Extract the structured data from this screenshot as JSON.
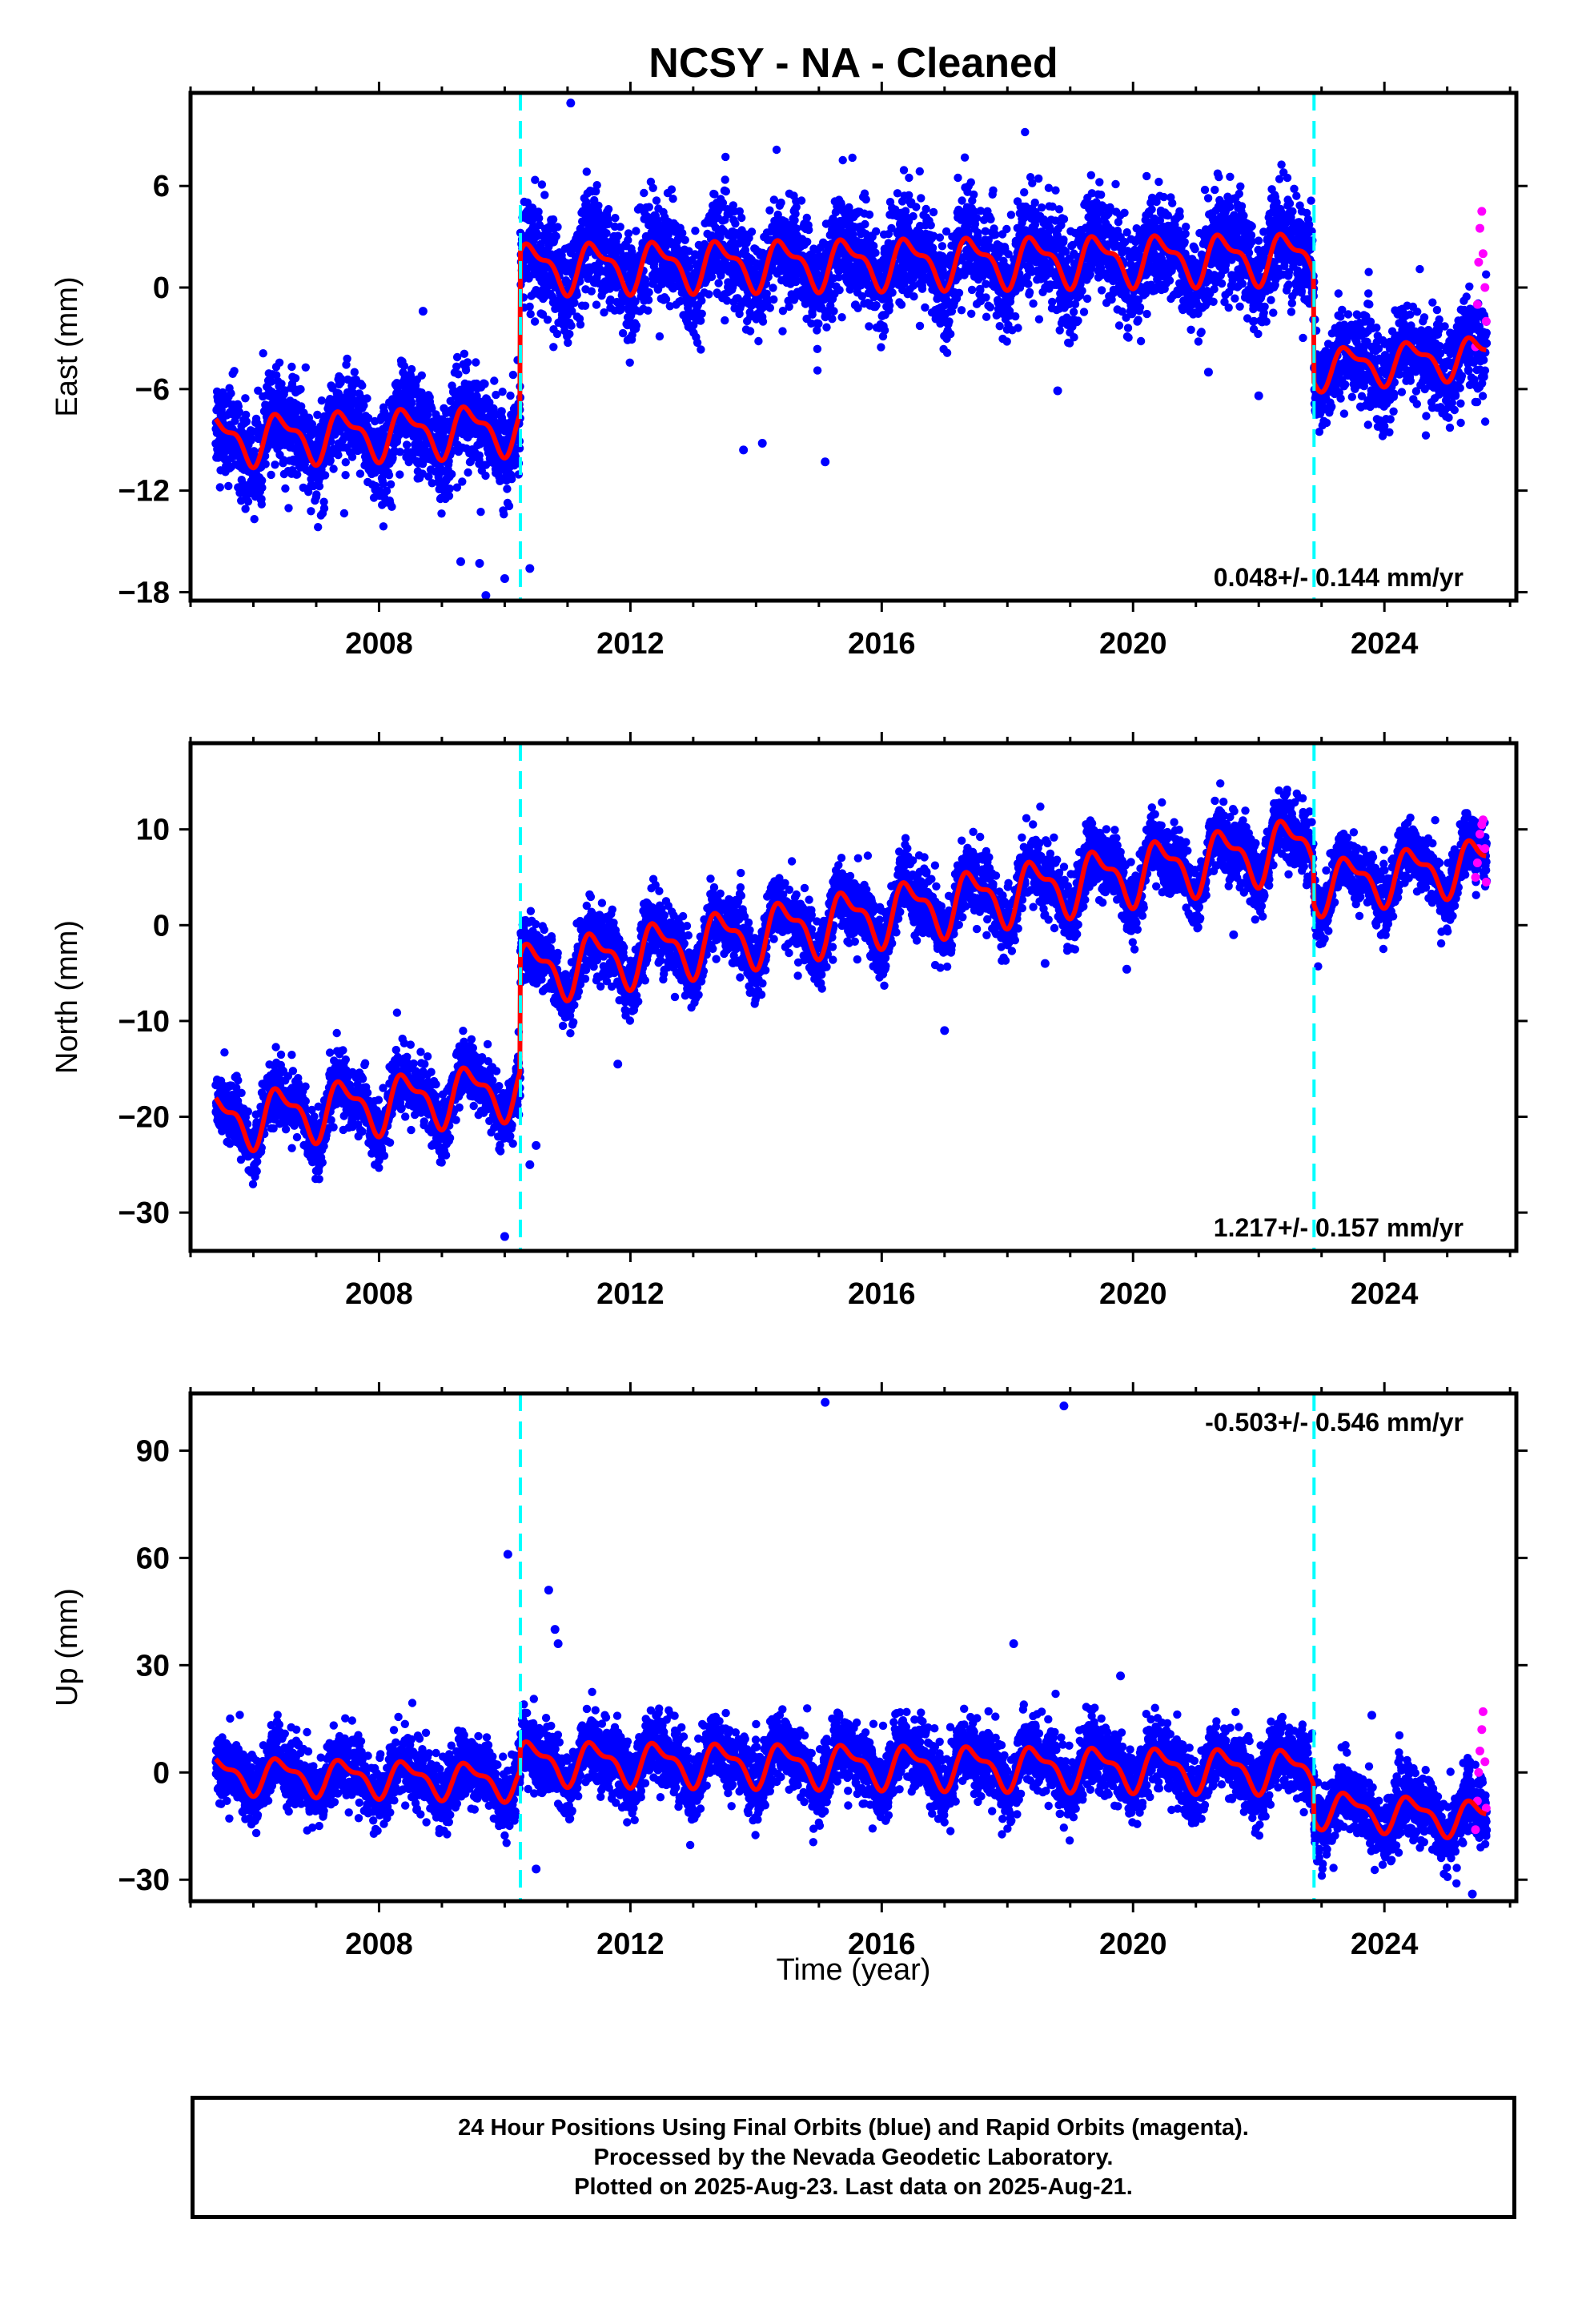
{
  "title": "NCSY  - NA - Cleaned",
  "xlabel": "Time (year)",
  "footer": {
    "line1": "24 Hour Positions Using Final Orbits (blue) and Rapid Orbits (magenta).",
    "line2": "Processed by the Nevada Geodetic Laboratory.",
    "line3": "Plotted on 2025-Aug-23. Last data on 2025-Aug-21."
  },
  "colors": {
    "final_orbits": "#0000ff",
    "rapid_orbits": "#ff00ff",
    "model": "#ff0000",
    "offsets": "#00ffff"
  },
  "chart_data": [
    {
      "type": "scatter",
      "ylabel": "East (mm)",
      "rate_text": "0.048+/- 0.144 mm/yr",
      "rate_position": "bottom-right",
      "xlim": [
        2005.0,
        2026.1
      ],
      "ylim": [
        -18.5,
        11.5
      ],
      "x_ticks": [
        2008,
        2012,
        2016,
        2020,
        2024
      ],
      "y_ticks": [
        6,
        0,
        -6,
        -12,
        -18
      ],
      "offsets": [
        2010.25,
        2022.88
      ],
      "segments": [
        {
          "x_start": 2005.4,
          "x_end": 2010.25,
          "level_start": -9.0,
          "level_end": -8.3,
          "amplitude": 1.6,
          "scatter": 1.4
        },
        {
          "x_start": 2010.25,
          "x_end": 2022.88,
          "level_start": 1.2,
          "level_end": 1.8,
          "amplitude": 1.6,
          "scatter": 1.5
        },
        {
          "x_start": 2022.88,
          "x_end": 2025.63,
          "level_start": -4.8,
          "level_end": -4.0,
          "amplitude": 1.3,
          "scatter": 1.4
        }
      ],
      "outliers": [
        [
          2009.3,
          -16.2
        ],
        [
          2009.6,
          -16.3
        ],
        [
          2009.7,
          -18.2
        ],
        [
          2010.0,
          -17.2
        ],
        [
          2010.4,
          -16.6
        ],
        [
          2011.05,
          10.9
        ],
        [
          2013.8,
          -9.6
        ],
        [
          2014.1,
          -9.2
        ],
        [
          2015.1,
          -10.3
        ],
        [
          2018.8,
          -6.1
        ],
        [
          2021.2,
          -5.0
        ],
        [
          2022.0,
          -6.4
        ],
        [
          2008.7,
          -1.4
        ]
      ],
      "rapid_points": [
        [
          2025.45,
          -3.5
        ],
        [
          2025.48,
          -1.0
        ],
        [
          2025.5,
          1.5
        ],
        [
          2025.52,
          3.5
        ],
        [
          2025.55,
          4.5
        ],
        [
          2025.57,
          2.0
        ],
        [
          2025.6,
          0.0
        ],
        [
          2025.62,
          -2.0
        ]
      ]
    },
    {
      "type": "scatter",
      "ylabel": "North (mm)",
      "rate_text": "1.217+/- 0.157 mm/yr",
      "rate_position": "bottom-right",
      "xlim": [
        2005.0,
        2026.1
      ],
      "ylim": [
        -34.0,
        19.0
      ],
      "x_ticks": [
        2008,
        2012,
        2016,
        2020,
        2024
      ],
      "y_ticks": [
        10,
        0,
        -10,
        -20,
        -30
      ],
      "offsets": [
        2010.25,
        2022.88
      ],
      "segments": [
        {
          "x_start": 2005.4,
          "x_end": 2010.25,
          "level_start": -20.5,
          "level_end": -17.0,
          "amplitude": 3.2,
          "scatter": 1.6
        },
        {
          "x_start": 2010.25,
          "x_end": 2022.88,
          "level_start": -5.0,
          "level_end": 8.5,
          "amplitude": 3.4,
          "scatter": 1.7
        },
        {
          "x_start": 2022.88,
          "x_end": 2025.63,
          "level_start": 4.0,
          "level_end": 6.5,
          "amplitude": 3.0,
          "scatter": 1.6
        }
      ],
      "outliers": [
        [
          2010.0,
          -32.5
        ],
        [
          2010.4,
          -25.0
        ],
        [
          2010.5,
          -23.0
        ],
        [
          2017.0,
          -11.0
        ],
        [
          2018.6,
          -4.0
        ],
        [
          2019.9,
          -4.6
        ],
        [
          2011.8,
          -14.5
        ],
        [
          2021.6,
          -1.0
        ]
      ],
      "rapid_points": [
        [
          2025.45,
          5.0
        ],
        [
          2025.48,
          6.5
        ],
        [
          2025.5,
          8.0
        ],
        [
          2025.52,
          9.5
        ],
        [
          2025.55,
          10.5
        ],
        [
          2025.57,
          11.0
        ],
        [
          2025.6,
          8.0
        ],
        [
          2025.62,
          4.5
        ]
      ]
    },
    {
      "type": "scatter",
      "ylabel": "Up (mm)",
      "rate_text": "-0.503+/- 0.546 mm/yr",
      "rate_position": "top-right",
      "xlim": [
        2005.0,
        2026.1
      ],
      "ylim": [
        -36.0,
        106.0
      ],
      "x_ticks": [
        2008,
        2012,
        2016,
        2020,
        2024
      ],
      "y_ticks": [
        90,
        60,
        30,
        0,
        -30
      ],
      "offsets": [
        2010.25,
        2022.88
      ],
      "segments": [
        {
          "x_start": 2005.4,
          "x_end": 2010.25,
          "level_start": -0.5,
          "level_end": -2.5,
          "amplitude": 5.5,
          "scatter": 4.5
        },
        {
          "x_start": 2010.25,
          "x_end": 2022.88,
          "level_start": 3.0,
          "level_end": 0.5,
          "amplitude": 6.5,
          "scatter": 4.8
        },
        {
          "x_start": 2022.88,
          "x_end": 2025.63,
          "level_start": -10.0,
          "level_end": -13.0,
          "amplitude": 5.5,
          "scatter": 5.0
        }
      ],
      "outliers": [
        [
          2010.05,
          61.0
        ],
        [
          2010.5,
          -27.0
        ],
        [
          2010.7,
          51.0
        ],
        [
          2010.8,
          40.0
        ],
        [
          2010.85,
          36.0
        ],
        [
          2015.1,
          103.5
        ],
        [
          2018.1,
          36.0
        ],
        [
          2018.9,
          102.5
        ],
        [
          2019.8,
          27.0
        ],
        [
          2023.8,
          16.0
        ],
        [
          2025.4,
          -34.0
        ]
      ],
      "rapid_points": [
        [
          2025.45,
          -16.0
        ],
        [
          2025.48,
          -8.0
        ],
        [
          2025.5,
          0.0
        ],
        [
          2025.52,
          6.0
        ],
        [
          2025.55,
          12.0
        ],
        [
          2025.57,
          17.0
        ],
        [
          2025.6,
          3.0
        ],
        [
          2025.62,
          -10.0
        ]
      ]
    }
  ]
}
